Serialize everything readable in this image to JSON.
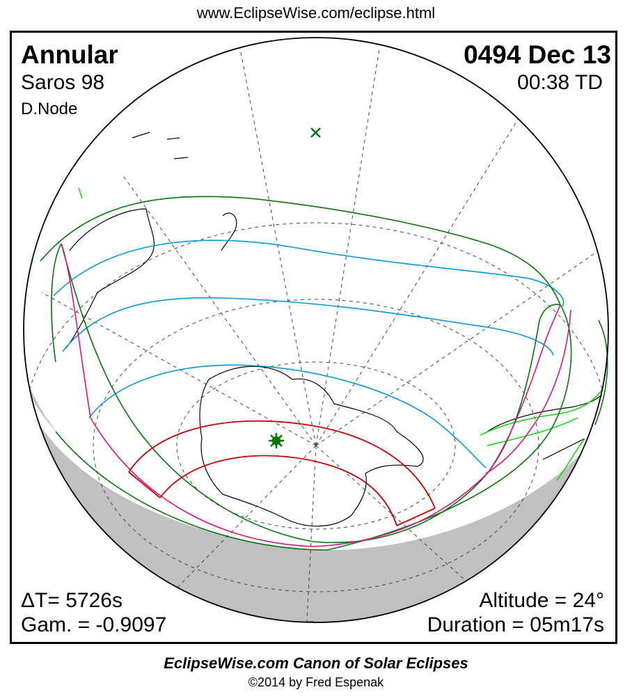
{
  "header": {
    "url": "www.EclipseWise.com/eclipse.html"
  },
  "eclipse": {
    "type": "Annular",
    "date": "0494 Dec 13",
    "saros": "Saros  98",
    "time": "00:38 TD",
    "node": "D.Node",
    "delta_t": "ΔT=   5726s",
    "gamma": "Gam. = -0.9097",
    "altitude": "Altitude = 24°",
    "duration": "Duration = 05m17s"
  },
  "footer": {
    "canon": "EclipseWise.com Canon of Solar Eclipses",
    "copyright": "©2014 by Fred Espenak"
  },
  "colors": {
    "central_path": "#cc0000",
    "penumbral_limits": "#007700",
    "penumbral_rise_set": "#dd1188",
    "eclipse_magnitude": "#0099dd",
    "night_shade": "#c0c0c0",
    "sunlit_land_outline": "#00dd00",
    "greatest_eclipse_marker": "#007700"
  },
  "icons": {
    "greatest_eclipse": "star-burst-icon",
    "sub_solar_point": "x-mark-icon"
  }
}
